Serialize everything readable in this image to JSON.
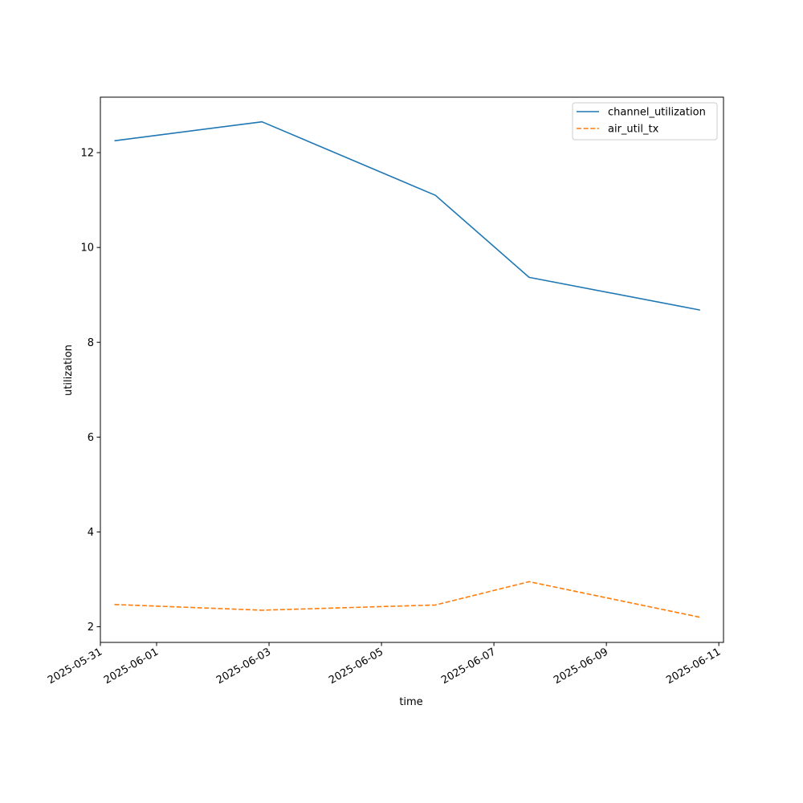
{
  "chart_data": {
    "type": "line",
    "title": "",
    "xlabel": "time",
    "ylabel": "utilization",
    "x_type": "datetime",
    "xlim": [
      "2025-05-31T00:00:00",
      "2025-06-11T02:00:00"
    ],
    "ylim": [
      1.67,
      13.17
    ],
    "x_ticks": [
      "2025-05-31",
      "2025-06-01",
      "2025-06-03",
      "2025-06-05",
      "2025-06-07",
      "2025-06-09",
      "2025-06-11"
    ],
    "x_tick_labels": [
      "2025-05-31",
      "2025-06-01",
      "2025-06-03",
      "2025-06-05",
      "2025-06-07",
      "2025-06-09",
      "2025-06-11"
    ],
    "y_ticks": [
      2,
      4,
      6,
      8,
      10,
      12
    ],
    "y_tick_labels": [
      "2",
      "4",
      "6",
      "8",
      "10",
      "12"
    ],
    "grid": false,
    "legend_position": "top-right",
    "x": [
      "2025-05-31T06:00:00",
      "2025-06-02T21:00:00",
      "2025-06-05T23:00:00",
      "2025-06-07T15:00:00",
      "2025-06-10T16:00:00"
    ],
    "series": [
      {
        "name": "channel_utilization",
        "color": "#1f77b4",
        "line_style": "solid",
        "values": [
          12.25,
          12.65,
          11.1,
          9.37,
          8.68
        ]
      },
      {
        "name": "air_util_tx",
        "color": "#ff7f0e",
        "line_style": "dashed",
        "values": [
          2.47,
          2.35,
          2.46,
          2.95,
          2.2
        ]
      }
    ]
  }
}
